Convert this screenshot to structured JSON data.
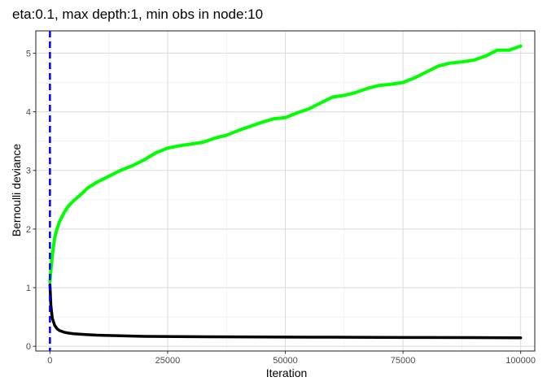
{
  "chart_data": {
    "type": "line",
    "title": "eta:0.1, max depth:1, min obs in node:10",
    "xlabel": "Iteration",
    "ylabel": "Bernoulli deviance",
    "xlim": [
      -3000,
      103000
    ],
    "ylim": [
      -0.08,
      5.38
    ],
    "x_ticks": [
      0,
      25000,
      50000,
      75000,
      100000
    ],
    "x_tick_labels": [
      "0",
      "25000",
      "50000",
      "75000",
      "100000"
    ],
    "y_ticks": [
      0,
      1,
      2,
      3,
      4,
      5
    ],
    "y_tick_labels": [
      "0",
      "1",
      "2",
      "3",
      "4",
      "5"
    ],
    "grid": true,
    "legend": "none",
    "vline": {
      "x": 0,
      "color": "#0000ff",
      "style": "dashed"
    },
    "series": [
      {
        "color": "#00ff00",
        "x": [
          0,
          200,
          500,
          1000,
          1500,
          2000,
          3000,
          4000,
          5000,
          6000,
          7000,
          8000,
          10000,
          12500,
          15000,
          17500,
          20000,
          22500,
          25000,
          27500,
          30000,
          32500,
          35000,
          37500,
          40000,
          42500,
          45000,
          47500,
          50000,
          52500,
          55000,
          57500,
          60000,
          62500,
          65000,
          67500,
          70000,
          72500,
          75000,
          77500,
          80000,
          82500,
          85000,
          87500,
          90000,
          92500,
          95000,
          97500,
          100000
        ],
        "y": [
          1.1,
          1.3,
          1.55,
          1.85,
          2.0,
          2.12,
          2.28,
          2.4,
          2.48,
          2.55,
          2.62,
          2.7,
          2.8,
          2.9,
          3.0,
          3.08,
          3.18,
          3.3,
          3.38,
          3.42,
          3.45,
          3.48,
          3.55,
          3.6,
          3.68,
          3.75,
          3.82,
          3.88,
          3.9,
          3.98,
          4.05,
          4.15,
          4.25,
          4.28,
          4.33,
          4.4,
          4.45,
          4.47,
          4.5,
          4.58,
          4.68,
          4.78,
          4.83,
          4.85,
          4.88,
          4.95,
          5.05,
          5.05,
          5.12
        ]
      },
      {
        "color": "#000000",
        "x": [
          0,
          200,
          500,
          1000,
          1500,
          2000,
          3000,
          4000,
          5000,
          7500,
          10000,
          15000,
          20000,
          30000,
          40000,
          50000,
          60000,
          70000,
          80000,
          90000,
          100000
        ],
        "y": [
          1.05,
          0.7,
          0.48,
          0.36,
          0.3,
          0.27,
          0.24,
          0.225,
          0.215,
          0.2,
          0.19,
          0.18,
          0.17,
          0.165,
          0.16,
          0.158,
          0.155,
          0.152,
          0.15,
          0.148,
          0.145
        ]
      }
    ]
  }
}
